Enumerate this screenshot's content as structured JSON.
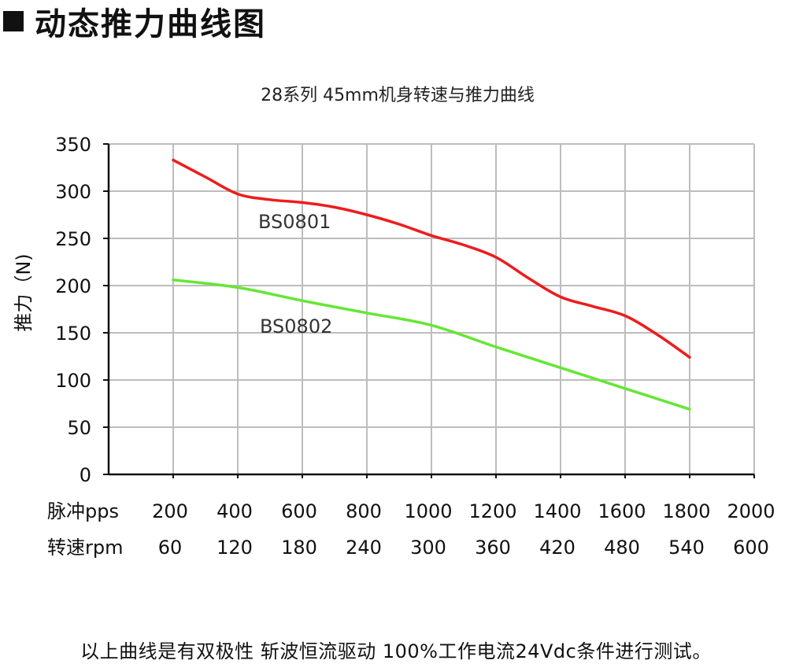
{
  "page": {
    "heading": "动态推力曲线图",
    "footnote": "以上曲线是有双极性 斩波恒流驱动 100%工作电流24Vdc条件进行测试。"
  },
  "chart_data": {
    "type": "line",
    "title": "28系列 45mm机身转速与推力曲线",
    "ylabel": "推力（N)",
    "xlabel_rows": [
      {
        "label": "脉冲pps",
        "ticks": [
          "200",
          "400",
          "600",
          "800",
          "1000",
          "1200",
          "1400",
          "1600",
          "1800",
          "2000"
        ]
      },
      {
        "label": "转速rpm",
        "ticks": [
          "60",
          "120",
          "180",
          "240",
          "300",
          "360",
          "420",
          "480",
          "540",
          "600"
        ]
      }
    ],
    "x": [
      200,
      400,
      600,
      800,
      1000,
      1200,
      1400,
      1600,
      1800,
      2000
    ],
    "xlim": [
      0,
      2000
    ],
    "ylim": [
      0,
      350
    ],
    "yticks": [
      0,
      50,
      100,
      150,
      200,
      250,
      300,
      350
    ],
    "grid": true,
    "series": [
      {
        "name": "BS0801",
        "color": "#ee1c1c",
        "points": [
          [
            200,
            333
          ],
          [
            300,
            315
          ],
          [
            400,
            297
          ],
          [
            500,
            291
          ],
          [
            600,
            288
          ],
          [
            700,
            283
          ],
          [
            800,
            275
          ],
          [
            900,
            265
          ],
          [
            1000,
            253
          ],
          [
            1100,
            243
          ],
          [
            1200,
            230
          ],
          [
            1300,
            208
          ],
          [
            1400,
            188
          ],
          [
            1500,
            178
          ],
          [
            1600,
            168
          ],
          [
            1700,
            148
          ],
          [
            1800,
            124
          ]
        ]
      },
      {
        "name": "BS0802",
        "color": "#66e635",
        "points": [
          [
            200,
            206
          ],
          [
            400,
            198
          ],
          [
            600,
            184
          ],
          [
            800,
            171
          ],
          [
            1000,
            158
          ],
          [
            1200,
            135
          ],
          [
            1400,
            113
          ],
          [
            1600,
            91
          ],
          [
            1800,
            69
          ]
        ]
      }
    ]
  }
}
